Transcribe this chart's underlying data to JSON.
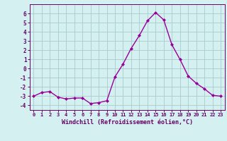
{
  "x": [
    0,
    1,
    2,
    3,
    4,
    5,
    6,
    7,
    8,
    9,
    10,
    11,
    12,
    13,
    14,
    15,
    16,
    17,
    18,
    19,
    20,
    21,
    22,
    23
  ],
  "y": [
    -3.0,
    -2.6,
    -2.5,
    -3.1,
    -3.3,
    -3.2,
    -3.2,
    -3.8,
    -3.7,
    -3.5,
    -0.9,
    0.5,
    2.2,
    3.6,
    5.2,
    6.1,
    5.3,
    2.6,
    1.0,
    -0.8,
    -1.6,
    -2.2,
    -2.9,
    -3.0
  ],
  "line_color": "#990099",
  "marker": "D",
  "marker_size": 2.0,
  "line_width": 1.0,
  "bg_color": "#d4f0f0",
  "grid_color": "#aacccc",
  "xlabel": "Windchill (Refroidissement éolien,°C)",
  "xlabel_color": "#660066",
  "tick_color": "#660066",
  "ylim": [
    -4.5,
    7.0
  ],
  "xlim": [
    -0.5,
    23.5
  ],
  "yticks": [
    -4,
    -3,
    -2,
    -1,
    0,
    1,
    2,
    3,
    4,
    5,
    6
  ],
  "xticks": [
    0,
    1,
    2,
    3,
    4,
    5,
    6,
    7,
    8,
    9,
    10,
    11,
    12,
    13,
    14,
    15,
    16,
    17,
    18,
    19,
    20,
    21,
    22,
    23
  ]
}
